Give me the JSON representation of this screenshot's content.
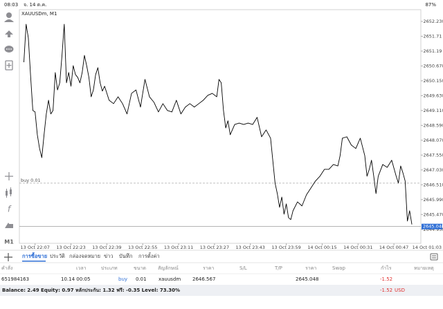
{
  "status_bar": {
    "time": "08:03",
    "date": "จ. 14 ต.ค.",
    "battery": "87%"
  },
  "toolbar": {
    "timeframe": "M1"
  },
  "chart_data": {
    "type": "line",
    "title": "XAUUSDm, M1",
    "color": "#000000",
    "x": [
      2,
      3,
      4,
      5,
      6,
      7,
      8,
      9,
      10,
      11,
      12,
      13,
      14,
      15,
      16,
      17,
      18,
      19,
      20,
      21,
      22,
      23,
      24,
      25,
      26,
      27,
      28,
      29,
      30,
      31,
      32,
      33,
      34,
      35,
      36,
      37,
      38,
      40,
      42,
      44,
      46,
      48,
      50,
      52,
      54,
      56,
      58,
      60,
      62,
      64,
      66,
      68,
      70,
      72,
      74,
      76,
      78,
      80,
      82,
      84,
      86,
      88,
      89,
      90,
      91,
      92,
      93,
      94,
      96,
      98,
      100,
      102,
      104,
      106,
      108,
      110,
      112,
      114,
      115,
      116,
      117,
      118,
      119,
      120,
      121,
      122,
      124,
      126,
      128,
      130,
      132,
      134,
      136,
      138,
      140,
      142,
      143,
      144,
      146,
      148,
      150,
      152,
      154,
      155,
      156,
      157,
      158,
      159,
      160,
      162,
      164,
      166,
      168,
      169,
      170,
      171,
      172,
      173,
      174,
      175
    ],
    "values": [
      2650.8,
      2652.13,
      2651.65,
      2650.32,
      2649.11,
      2649.06,
      2648.26,
      2647.78,
      2647.46,
      2648.26,
      2648.99,
      2649.47,
      2648.99,
      2649.11,
      2650.44,
      2649.83,
      2650.08,
      2651.04,
      2652.13,
      2650.08,
      2650.44,
      2649.96,
      2650.68,
      2650.37,
      2650.27,
      2650.08,
      2650.44,
      2651.04,
      2650.68,
      2650.27,
      2649.59,
      2649.83,
      2650.37,
      2650.61,
      2650.08,
      2649.79,
      2649.96,
      2649.47,
      2649.35,
      2649.59,
      2649.35,
      2648.99,
      2649.71,
      2649.83,
      2649.23,
      2650.2,
      2649.59,
      2649.4,
      2649.06,
      2649.35,
      2649.11,
      2649.06,
      2649.47,
      2648.99,
      2649.23,
      2649.35,
      2649.23,
      2649.35,
      2649.47,
      2649.64,
      2649.71,
      2649.59,
      2650.2,
      2650.08,
      2649.11,
      2648.5,
      2648.75,
      2648.26,
      2648.62,
      2648.67,
      2648.62,
      2648.67,
      2648.62,
      2648.87,
      2648.19,
      2648.43,
      2648.14,
      2646.57,
      2646.2,
      2645.72,
      2646.08,
      2645.48,
      2645.84,
      2645.36,
      2645.29,
      2645.6,
      2645.91,
      2645.77,
      2646.16,
      2646.4,
      2646.64,
      2646.81,
      2647.05,
      2647.05,
      2647.22,
      2647.17,
      2647.53,
      2648.14,
      2648.19,
      2647.9,
      2647.78,
      2648.14,
      2647.53,
      2646.81,
      2647.05,
      2647.37,
      2646.81,
      2646.2,
      2646.81,
      2647.22,
      2647.12,
      2647.37,
      2646.81,
      2646.57,
      2647.17,
      2646.93,
      2646.64,
      2645.24,
      2645.6,
      2645.12
    ],
    "xlim": [
      0,
      179
    ],
    "xticks": [
      {
        "value": 7,
        "label": "13 Oct 22:07"
      },
      {
        "value": 23,
        "label": "13 Oct 22:23"
      },
      {
        "value": 39,
        "label": "13 Oct 22:39"
      },
      {
        "value": 55,
        "label": "13 Oct 22:55"
      },
      {
        "value": 71,
        "label": "13 Oct 23:11"
      },
      {
        "value": 87,
        "label": "13 Oct 23:27"
      },
      {
        "value": 103,
        "label": "13 Oct 23:43"
      },
      {
        "value": 119,
        "label": "13 Oct 23:59"
      },
      {
        "value": 135,
        "label": "14 Oct 00:15"
      },
      {
        "value": 151,
        "label": "14 Oct 00:31"
      },
      {
        "value": 167,
        "label": "14 Oct 00:47"
      },
      {
        "value": 183,
        "label": "14 Oct 01:03"
      }
    ],
    "ylim": [
      2644.46,
      2652.64
    ],
    "yticks": [
      {
        "value": 2652.23,
        "label": "2652.230"
      },
      2651.71,
      2651.19,
      {
        "value": 2650.67,
        "label": "2650.670"
      },
      {
        "value": 2650.15,
        "label": "2650.150"
      },
      {
        "value": 2649.63,
        "label": "2649.630"
      },
      {
        "value": 2649.11,
        "label": "2649.110"
      },
      {
        "value": 2648.59,
        "label": "2648.590"
      },
      {
        "value": 2648.07,
        "label": "2648.070"
      },
      {
        "value": 2647.55,
        "label": "2647.550"
      },
      {
        "value": 2647.03,
        "label": "2647.030"
      },
      {
        "value": 2646.51,
        "label": "2646.510"
      },
      {
        "value": 2645.99,
        "label": "2645.990"
      },
      {
        "value": 2645.47,
        "label": "2645.470"
      },
      {
        "value": 2644.95,
        "label": "2644.950"
      }
    ],
    "order_line": {
      "label": "buy 0.01",
      "value": 2646.567
    },
    "current_price": 2645.048
  },
  "tabs": [
    "การซื้อขาย",
    "ประวัติ",
    "กล่องจดหมาย",
    "ข่าว",
    "บันทึก",
    "การตั้งค่า"
  ],
  "active_tab": 0,
  "table": {
    "headers": [
      "คำสั่ง",
      "เวลา",
      "ประเภท",
      "ขนาด",
      "สัญลักษณ์",
      "ราคา",
      "S/L",
      "T/P",
      "ราคา",
      "Swap",
      "กำไร",
      "หมายเหตุ"
    ],
    "row": {
      "order": "651984163",
      "time": "10.14 00:05",
      "type": "buy",
      "volume": "0.01",
      "symbol": "xauusdm",
      "open_price": "2646.567",
      "current_price": "2645.048",
      "profit": "-1.52"
    }
  },
  "summary": {
    "text": "Balance: 2.49 Equity: 0.97 หลักประกัน: 1.32 ฟรี: -0.35 Level: 73.30%",
    "profit": "-1.52",
    "currency": "USD"
  }
}
